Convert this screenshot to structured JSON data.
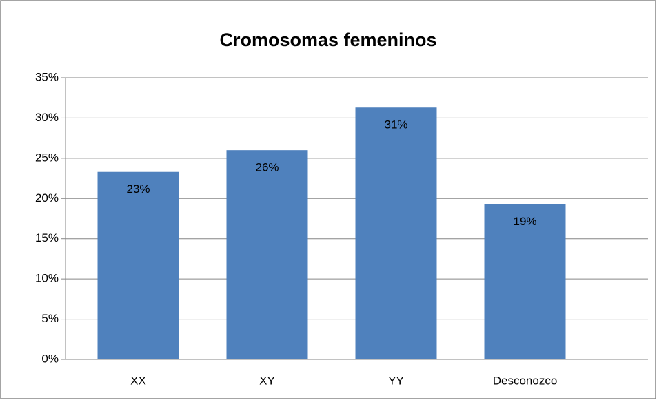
{
  "chart_data": {
    "type": "bar",
    "title": "Cromosomas femeninos",
    "categories": [
      "XX",
      "XY",
      "YY",
      "Desconozco"
    ],
    "values": [
      23.3,
      26,
      31.3,
      19.3
    ],
    "value_labels": [
      "23%",
      "26%",
      "31%",
      "19%"
    ],
    "color": "#4f81bd",
    "ylim": [
      0,
      35
    ],
    "yticks": [
      {
        "value": 0,
        "label": "0%"
      },
      {
        "value": 5,
        "label": "5%"
      },
      {
        "value": 10,
        "label": "10%"
      },
      {
        "value": 15,
        "label": "15%"
      },
      {
        "value": 20,
        "label": "20%"
      },
      {
        "value": 25,
        "label": "25%"
      },
      {
        "value": 30,
        "label": "30%"
      },
      {
        "value": 35,
        "label": "35%"
      }
    ],
    "grid": true
  }
}
